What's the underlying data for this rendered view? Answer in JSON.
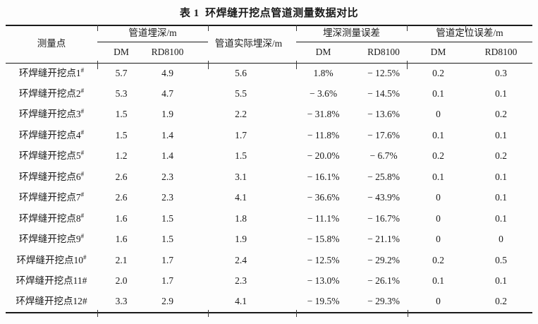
{
  "title": "表 1  环焊缝开挖点管道测量数据对比",
  "table": {
    "header": {
      "measure_point": "测量点",
      "group_pipe_depth": "管道埋深/m",
      "actual_depth": "管道实际埋深/m",
      "group_depth_error": "埋深测量误差",
      "group_location_error": "管道定位误差/m",
      "dm": "DM",
      "rd8100": "RD8100"
    },
    "rows": [
      {
        "name": "环焊缝开挖点1",
        "sup": "#",
        "dm_depth": "5.7",
        "rd_depth": "4.9",
        "actual": "5.6",
        "dm_err": "1.8%",
        "rd_err": "− 12.5%",
        "dm_loc": "0.2",
        "rd_loc": "0.3"
      },
      {
        "name": "环焊缝开挖点2",
        "sup": "#",
        "dm_depth": "5.3",
        "rd_depth": "4.7",
        "actual": "5.5",
        "dm_err": "− 3.6%",
        "rd_err": "− 14.5%",
        "dm_loc": "0.1",
        "rd_loc": "0.1"
      },
      {
        "name": "环焊缝开挖点3",
        "sup": "#",
        "dm_depth": "1.5",
        "rd_depth": "1.9",
        "actual": "2.2",
        "dm_err": "− 31.8%",
        "rd_err": "− 13.6%",
        "dm_loc": "0",
        "rd_loc": "0.2"
      },
      {
        "name": "环焊缝开挖点4",
        "sup": "#",
        "dm_depth": "1.5",
        "rd_depth": "1.4",
        "actual": "1.7",
        "dm_err": "− 11.8%",
        "rd_err": "− 17.6%",
        "dm_loc": "0.1",
        "rd_loc": "0.1"
      },
      {
        "name": "环焊缝开挖点5",
        "sup": "#",
        "dm_depth": "1.2",
        "rd_depth": "1.4",
        "actual": "1.5",
        "dm_err": "− 20.0%",
        "rd_err": "− 6.7%",
        "dm_loc": "0.2",
        "rd_loc": "0.2"
      },
      {
        "name": "环焊缝开挖点6",
        "sup": "#",
        "dm_depth": "2.6",
        "rd_depth": "2.3",
        "actual": "3.1",
        "dm_err": "− 16.1%",
        "rd_err": "− 25.8%",
        "dm_loc": "0.1",
        "rd_loc": "0.1"
      },
      {
        "name": "环焊缝开挖点7",
        "sup": "#",
        "dm_depth": "2.6",
        "rd_depth": "2.3",
        "actual": "4.1",
        "dm_err": "− 36.6%",
        "rd_err": "− 43.9%",
        "dm_loc": "0",
        "rd_loc": "0.1"
      },
      {
        "name": "环焊缝开挖点8",
        "sup": "#",
        "dm_depth": "1.6",
        "rd_depth": "1.5",
        "actual": "1.8",
        "dm_err": "− 11.1%",
        "rd_err": "− 16.7%",
        "dm_loc": "0",
        "rd_loc": "0.1"
      },
      {
        "name": "环焊缝开挖点9",
        "sup": "#",
        "dm_depth": "1.6",
        "rd_depth": "1.5",
        "actual": "1.9",
        "dm_err": "− 15.8%",
        "rd_err": "− 21.1%",
        "dm_loc": "0",
        "rd_loc": "0"
      },
      {
        "name": "环焊缝开挖点10",
        "sup": "#",
        "dm_depth": "2.1",
        "rd_depth": "1.7",
        "actual": "2.4",
        "dm_err": "− 12.5%",
        "rd_err": "− 29.2%",
        "dm_loc": "0.2",
        "rd_loc": "0.5"
      },
      {
        "name": "环焊缝开挖点11#",
        "sup": "",
        "dm_depth": "2.0",
        "rd_depth": "1.7",
        "actual": "2.3",
        "dm_err": "− 13.0%",
        "rd_err": "− 26.1%",
        "dm_loc": "0.1",
        "rd_loc": "0.1"
      },
      {
        "name": "环焊缝开挖点12#",
        "sup": "",
        "dm_depth": "3.3",
        "rd_depth": "2.9",
        "actual": "4.1",
        "dm_err": "− 19.5%",
        "rd_err": "− 29.3%",
        "dm_loc": "0",
        "rd_loc": "0.2"
      }
    ]
  }
}
